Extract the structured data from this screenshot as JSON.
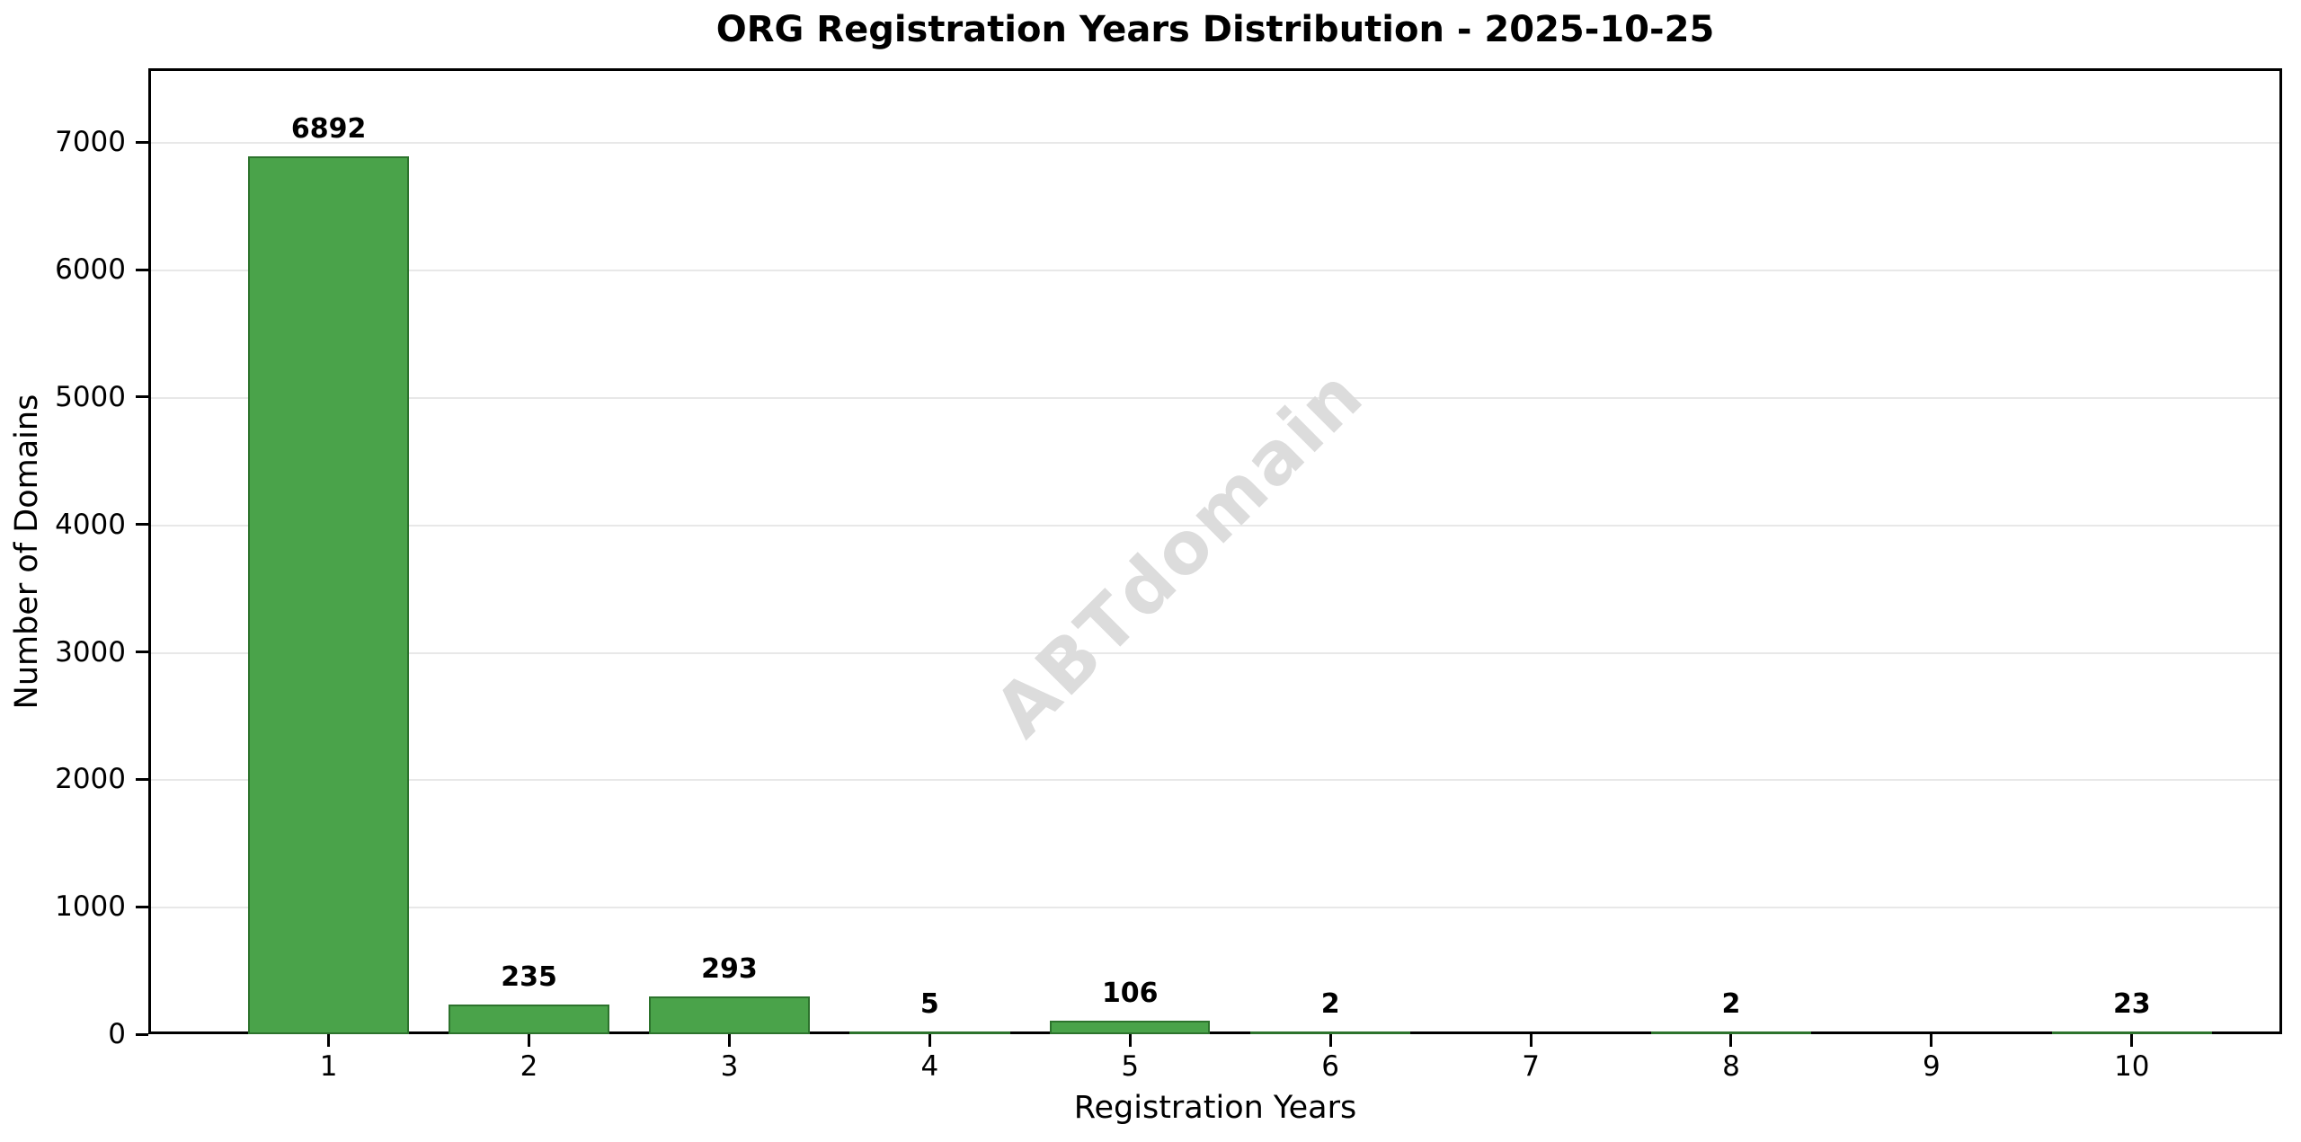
{
  "chart_data": {
    "type": "bar",
    "title": "ORG Registration Years Distribution - 2025-10-25",
    "xlabel": "Registration Years",
    "ylabel": "Number of Domains",
    "categories": [
      "1",
      "2",
      "3",
      "4",
      "5",
      "6",
      "7",
      "8",
      "9",
      "10"
    ],
    "values": [
      6892,
      235,
      293,
      5,
      106,
      2,
      0,
      2,
      0,
      23
    ],
    "bar_labels": [
      "6892",
      "235",
      "293",
      "5",
      "106",
      "2",
      "",
      "2",
      "",
      "23"
    ],
    "ytick_labels": [
      "0",
      "1000",
      "2000",
      "3000",
      "4000",
      "5000",
      "6000",
      "7000"
    ],
    "ytick_values": [
      0,
      1000,
      2000,
      3000,
      4000,
      5000,
      6000,
      7000
    ],
    "ylim": [
      0,
      7580
    ],
    "xlim": [
      0.1,
      10.75
    ],
    "bar_width": 0.8,
    "grid": "horizontal",
    "legend": "none",
    "watermark": "ABTdomain",
    "colors": {
      "bar_fill": "#4aa34a",
      "bar_edge": "#2d732d",
      "grid": "#e8e8e8",
      "axis": "#000000",
      "text": "#000000",
      "watermark": "#dcdcdc",
      "background": "#ffffff"
    }
  }
}
